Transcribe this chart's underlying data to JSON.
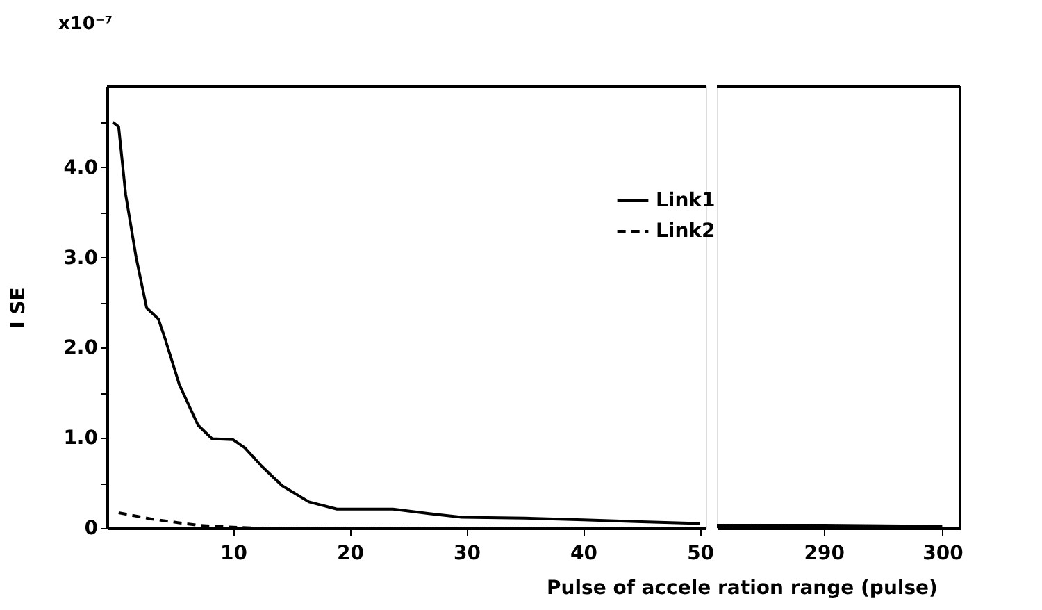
{
  "chart_data": [
    {
      "type": "line",
      "ylabel": "I SE",
      "xlabel": "Pulse of accele ration range (pulse)",
      "annotations": [
        "x10⁻⁷"
      ],
      "xlim": [
        -0.8,
        50.5
      ],
      "xticks": [
        10,
        20,
        30,
        40,
        50
      ],
      "ylim": [
        0,
        4.9
      ],
      "yticks": [
        0,
        {
          "value": 0.5,
          "label": null
        },
        {
          "value": 1,
          "label": "1.0"
        },
        {
          "value": 1.5,
          "label": null
        },
        {
          "value": 2,
          "label": "2.0"
        },
        {
          "value": 2.5,
          "label": null
        },
        {
          "value": 3,
          "label": "3.0"
        },
        {
          "value": 3.5,
          "label": null
        },
        {
          "value": 4,
          "label": "4.0"
        },
        {
          "value": 4.5,
          "label": null
        }
      ],
      "tick_labels": true,
      "grid": false,
      "legend": "top right",
      "series": [
        {
          "name": "Link1",
          "color": "#000000",
          "line_style": "solid",
          "x": [
            -0.3,
            0.2,
            0.8,
            1.7,
            2.6,
            3.6,
            4.2,
            5.4,
            7.0,
            8.2,
            10,
            11,
            12.5,
            14.2,
            16.5,
            18.9,
            23.7,
            26.8,
            29.6,
            35,
            40,
            45,
            50
          ],
          "values": [
            4.5,
            4.45,
            3.7,
            3.0,
            2.44,
            2.32,
            2.09,
            1.59,
            1.14,
            0.99,
            0.98,
            0.89,
            0.68,
            0.47,
            0.29,
            0.21,
            0.21,
            0.16,
            0.12,
            0.11,
            0.09,
            0.07,
            0.05
          ]
        },
        {
          "name": "Link2",
          "color": "#000000",
          "line_style": "dashed",
          "x": [
            0.2,
            3,
            7,
            10,
            12,
            20,
            30,
            40,
            50
          ],
          "values": [
            0.17,
            0.1,
            0.03,
            0.01,
            0,
            0,
            0,
            0,
            0
          ]
        }
      ]
    },
    {
      "type": "line",
      "xlim": [
        281,
        301.5
      ],
      "xticks": [
        290,
        300
      ],
      "ylim": [
        0,
        4.9
      ],
      "tick_labels": "x",
      "grid": false,
      "legend": false,
      "series": [
        {
          "color": "#000000",
          "line_style": "solid",
          "x": [
            281,
            290,
            300
          ],
          "values": [
            0.03,
            0.03,
            0.02
          ]
        },
        {
          "color": "#000000",
          "line_style": "dashed",
          "x": [
            281,
            300
          ],
          "values": [
            0,
            0
          ]
        }
      ]
    }
  ]
}
